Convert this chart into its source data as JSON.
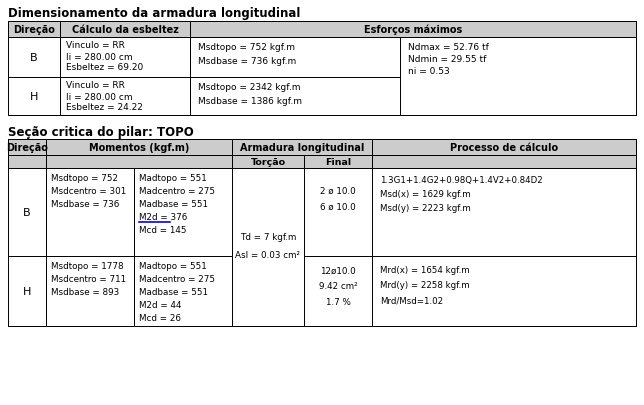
{
  "title1": "Dimensionamento da armadura longitudinal",
  "title2": "Seção critica do pilar: TOPO",
  "t1_row_B_esbeltez": [
    "Vinculo = RR",
    "li = 280.00 cm",
    "Esbeltez = 69.20"
  ],
  "t1_row_B_msd": [
    "Msdtopo = 752 kgf.m",
    "Msdbase = 736 kgf.m"
  ],
  "t1_row_B_nd": [
    "Ndmax = 52.76 tf",
    "Ndmin = 29.55 tf",
    "ni = 0.53"
  ],
  "t1_row_H_esbeltez": [
    "Vinculo = RR",
    "li = 280.00 cm",
    "Esbeltez = 24.22"
  ],
  "t1_row_H_msd": [
    "Msdtopo = 2342 kgf.m",
    "Msdbase = 1386 kgf.m"
  ],
  "t2_row_B_msd": [
    "Msdtopo = 752",
    "Msdcentro = 301",
    "Msdbase = 736"
  ],
  "t2_row_B_mad": [
    "Madtopo = 551",
    "Madcentro = 275",
    "Madbase = 551",
    "M2d = 376",
    "Mcd = 145"
  ],
  "t2_row_B_m2d_idx": 3,
  "t2_row_B_final": [
    "2 ø 10.0",
    "6 ø 10.0"
  ],
  "t2_row_B_processo": [
    "1.3G1+1.4G2+0.98Q+1.4V2+0.84D2",
    "Msd(x) = 1629 kgf.m",
    "Msd(y) = 2223 kgf.m"
  ],
  "t2_row_H_msd": [
    "Msdtopo = 1778",
    "Msdcentro = 711",
    "Msdbase = 893"
  ],
  "t2_row_H_mad": [
    "Madtopo = 551",
    "Madcentro = 275",
    "Madbase = 551",
    "M2d = 44",
    "Mcd = 26"
  ],
  "t2_torcao_line1": "Td = 7 kgf.m",
  "t2_torcao_line2": "Asl = 0.03 cm²",
  "t2_row_H_final": [
    "12ø10.0",
    "9.42 cm²",
    "1.7 %"
  ],
  "t2_row_H_processo": [
    "Mrd(x) = 1654 kgf.m",
    "Mrd(y) = 2258 kgf.m",
    "Mrd/Msd=1.02"
  ],
  "header_bg": "#cccccc",
  "bg_color": "#ffffff",
  "border_color": "#000000"
}
